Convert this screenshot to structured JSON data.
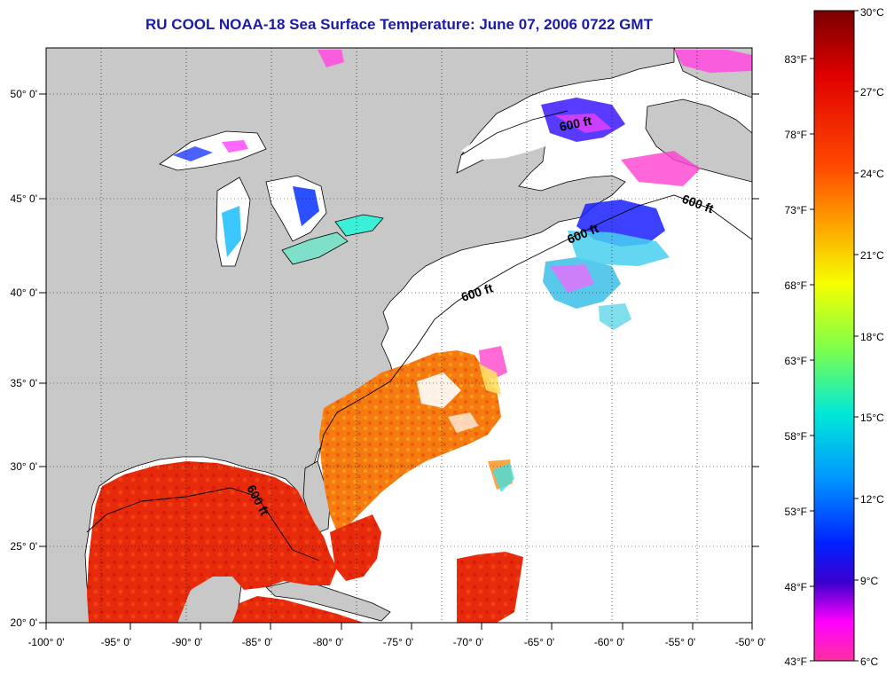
{
  "title": "RU COOL  NOAA-18  Sea Surface Temperature:  June 07, 2006 0722 GMT",
  "axes": {
    "x_ticks": [
      "-100° 0'",
      "-95° 0'",
      "-90° 0'",
      "-85° 0'",
      "-80° 0'",
      "-75° 0'",
      "-70° 0'",
      "-65° 0'",
      "-60° 0'",
      "-55° 0'",
      "-50° 0'"
    ],
    "y_ticks": [
      "50° 0'",
      "45° 0'",
      "40° 0'",
      "35° 0'",
      "30° 0'",
      "25° 0'",
      "20° 0'"
    ]
  },
  "contour_labels": [
    "600 ft",
    "600 ft",
    "600 ft",
    "600 ft",
    "600 ft"
  ],
  "colorbar": {
    "celsius": [
      "30°C",
      "27°C",
      "24°C",
      "21°C",
      "18°C",
      "15°C",
      "12°C",
      "9°C",
      "6°C"
    ],
    "fahrenheit": [
      "83°F",
      "78°F",
      "73°F",
      "68°F",
      "63°F",
      "58°F",
      "53°F",
      "48°F",
      "43°F"
    ],
    "colors": [
      "#7a0000",
      "#e00000",
      "#ff3a00",
      "#ff8c00",
      "#ffe600",
      "#8cff3c",
      "#00e6c8",
      "#00a0ff",
      "#0032ff",
      "#2a00d2",
      "#ff00ff",
      "#ff2aa0"
    ]
  },
  "colors": {
    "land": "#c8c8c8",
    "ocean_no_data": "#ffffff",
    "title": "#1a1aa8"
  }
}
